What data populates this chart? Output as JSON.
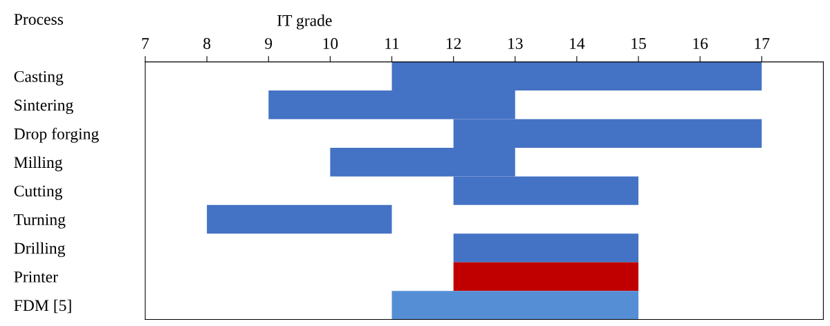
{
  "chart_data": {
    "type": "bar",
    "orientation": "horizontal",
    "xlabel": "IT grade",
    "ylabel": "Process",
    "categories": [
      "Casting",
      "Sintering",
      "Drop forging",
      "Milling",
      "Cutting",
      "Turning",
      "Drilling",
      "Printer",
      "FDM [5]"
    ],
    "base": [
      11,
      9,
      12,
      10,
      12,
      8,
      12,
      12,
      11
    ],
    "values": [
      6,
      4,
      5,
      3,
      3,
      3,
      3,
      3,
      4
    ],
    "colors": [
      "#4472c4",
      "#4472c4",
      "#4472c4",
      "#4472c4",
      "#4472c4",
      "#4472c4",
      "#4472c4",
      "#c00000",
      "#558ed5"
    ],
    "xlim": [
      7,
      18
    ],
    "xticks": [
      7,
      8,
      9,
      10,
      11,
      12,
      13,
      14,
      15,
      16,
      17
    ]
  }
}
